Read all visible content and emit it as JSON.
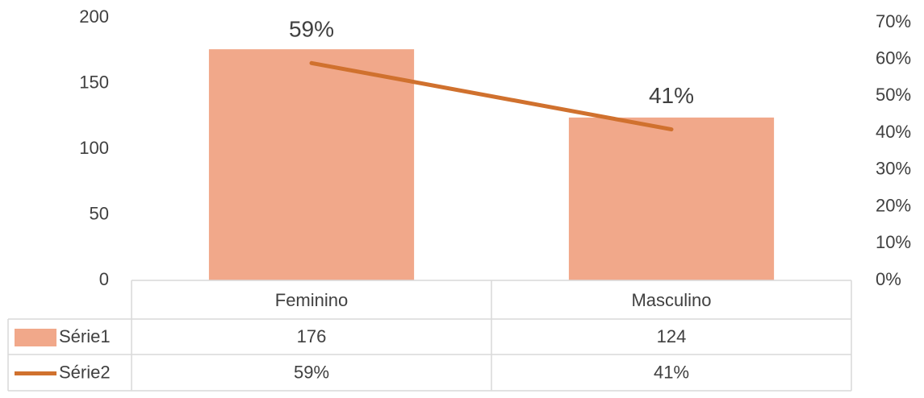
{
  "chart_data": {
    "type": "bar",
    "categories": [
      "Feminino",
      "Masculino"
    ],
    "series": [
      {
        "name": "Série1",
        "type": "bar",
        "color": "#f1a88a",
        "values": [
          176,
          124
        ]
      },
      {
        "name": "Série2",
        "type": "line",
        "axis": "y2",
        "color": "#d0712e",
        "values": [
          59,
          41
        ],
        "value_labels": [
          "59%",
          "41%"
        ]
      }
    ],
    "ylim": [
      0,
      200
    ],
    "yticks": [
      0,
      50,
      100,
      150,
      200
    ],
    "y2lim": [
      0,
      70
    ],
    "y2ticks": [
      {
        "value": 0,
        "label": "0%"
      },
      {
        "value": 10,
        "label": "10%"
      },
      {
        "value": 20,
        "label": "20%"
      },
      {
        "value": 30,
        "label": "30%"
      },
      {
        "value": 40,
        "label": "40%"
      },
      {
        "value": 50,
        "label": "50%"
      },
      {
        "value": 60,
        "label": "60%"
      },
      {
        "value": 70,
        "label": "70%"
      }
    ],
    "grid": false,
    "data_table": true
  }
}
